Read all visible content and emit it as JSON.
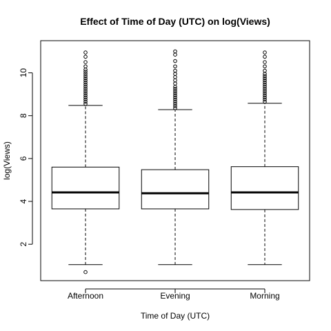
{
  "chart_data": {
    "type": "boxplot",
    "title": "Effect of Time of Day (UTC) on log(Views)",
    "xlabel": "Time of Day (UTC)",
    "ylabel": "log(Views)",
    "ylim": [
      0.3,
      11.5
    ],
    "yticks": [
      2,
      4,
      6,
      8,
      10
    ],
    "categories": [
      "Afternoon",
      "Evening",
      "Morning"
    ],
    "boxes": [
      {
        "category": "Afternoon",
        "lower_whisker": 1.05,
        "q1": 3.65,
        "median": 4.42,
        "q3": 5.6,
        "upper_whisker": 8.48,
        "outliers": [
          0.7,
          8.55,
          8.65,
          8.75,
          8.85,
          8.95,
          9.05,
          9.15,
          9.25,
          9.35,
          9.45,
          9.55,
          9.65,
          9.75,
          9.85,
          9.95,
          10.05,
          10.15,
          10.3,
          10.5,
          10.75,
          10.95
        ]
      },
      {
        "category": "Evening",
        "lower_whisker": 1.05,
        "q1": 3.65,
        "median": 4.38,
        "q3": 5.48,
        "upper_whisker": 8.28,
        "outliers": [
          8.35,
          8.45,
          8.55,
          8.65,
          8.75,
          8.85,
          8.95,
          9.05,
          9.15,
          9.25,
          9.35,
          9.5,
          9.65,
          9.8,
          9.95,
          10.1,
          10.3,
          10.55,
          10.85,
          11.0
        ]
      },
      {
        "category": "Morning",
        "lower_whisker": 1.05,
        "q1": 3.62,
        "median": 4.42,
        "q3": 5.62,
        "upper_whisker": 8.58,
        "outliers": [
          8.65,
          8.75,
          8.85,
          8.95,
          9.05,
          9.15,
          9.25,
          9.35,
          9.45,
          9.55,
          9.65,
          9.75,
          9.85,
          9.95,
          10.1,
          10.3,
          10.5,
          10.75,
          10.95
        ]
      }
    ]
  }
}
